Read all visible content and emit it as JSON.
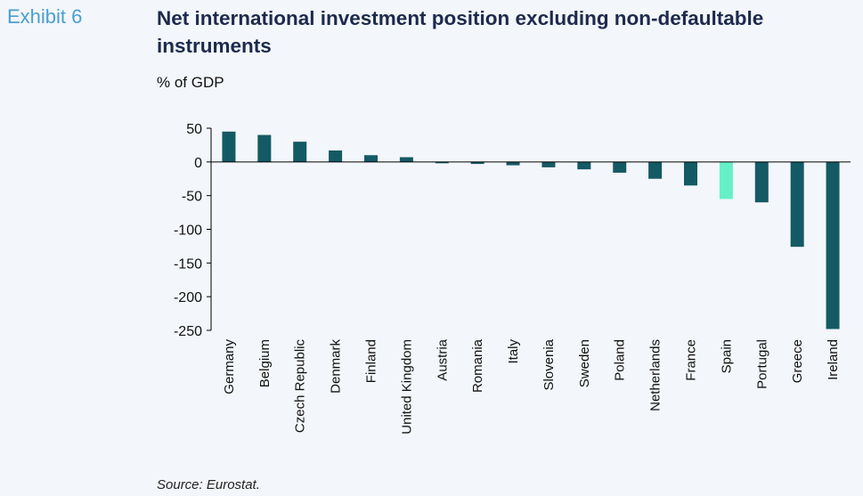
{
  "header": {
    "exhibit_label": "Exhibit 6",
    "title": "Net international investment position excluding non-defaultable instruments",
    "unit_label": "% of GDP"
  },
  "footer": {
    "source": "Source: Eurostat."
  },
  "colors": {
    "bar": "#145a64",
    "highlight": "#66f0c8",
    "axis": "#000000"
  },
  "chart_data": {
    "type": "bar",
    "title": "Net international investment position excluding non-defaultable instruments",
    "xlabel": "",
    "ylabel": "% of GDP",
    "ylim": [
      -250,
      50
    ],
    "yticks": [
      50,
      0,
      -50,
      -100,
      -150,
      -200,
      -250
    ],
    "ytick_labels": [
      "50",
      "0",
      "-50",
      "-100",
      "-150",
      "-200",
      "-250"
    ],
    "categories": [
      "Germany",
      "Belgium",
      "Czech Republic",
      "Denmark",
      "Finland",
      "United Kingdom",
      "Austria",
      "Romania",
      "Italy",
      "Slovenia",
      "Sweden",
      "Poland",
      "Netherlands",
      "France",
      "Spain",
      "Portugal",
      "Greece",
      "Ireland"
    ],
    "values": [
      45,
      40,
      30,
      17,
      10,
      7,
      -2,
      -3,
      -5,
      -8,
      -11,
      -16,
      -25,
      -35,
      -55,
      -60,
      -126,
      -248
    ],
    "highlight": "Spain",
    "grid": false,
    "legend": "none"
  }
}
